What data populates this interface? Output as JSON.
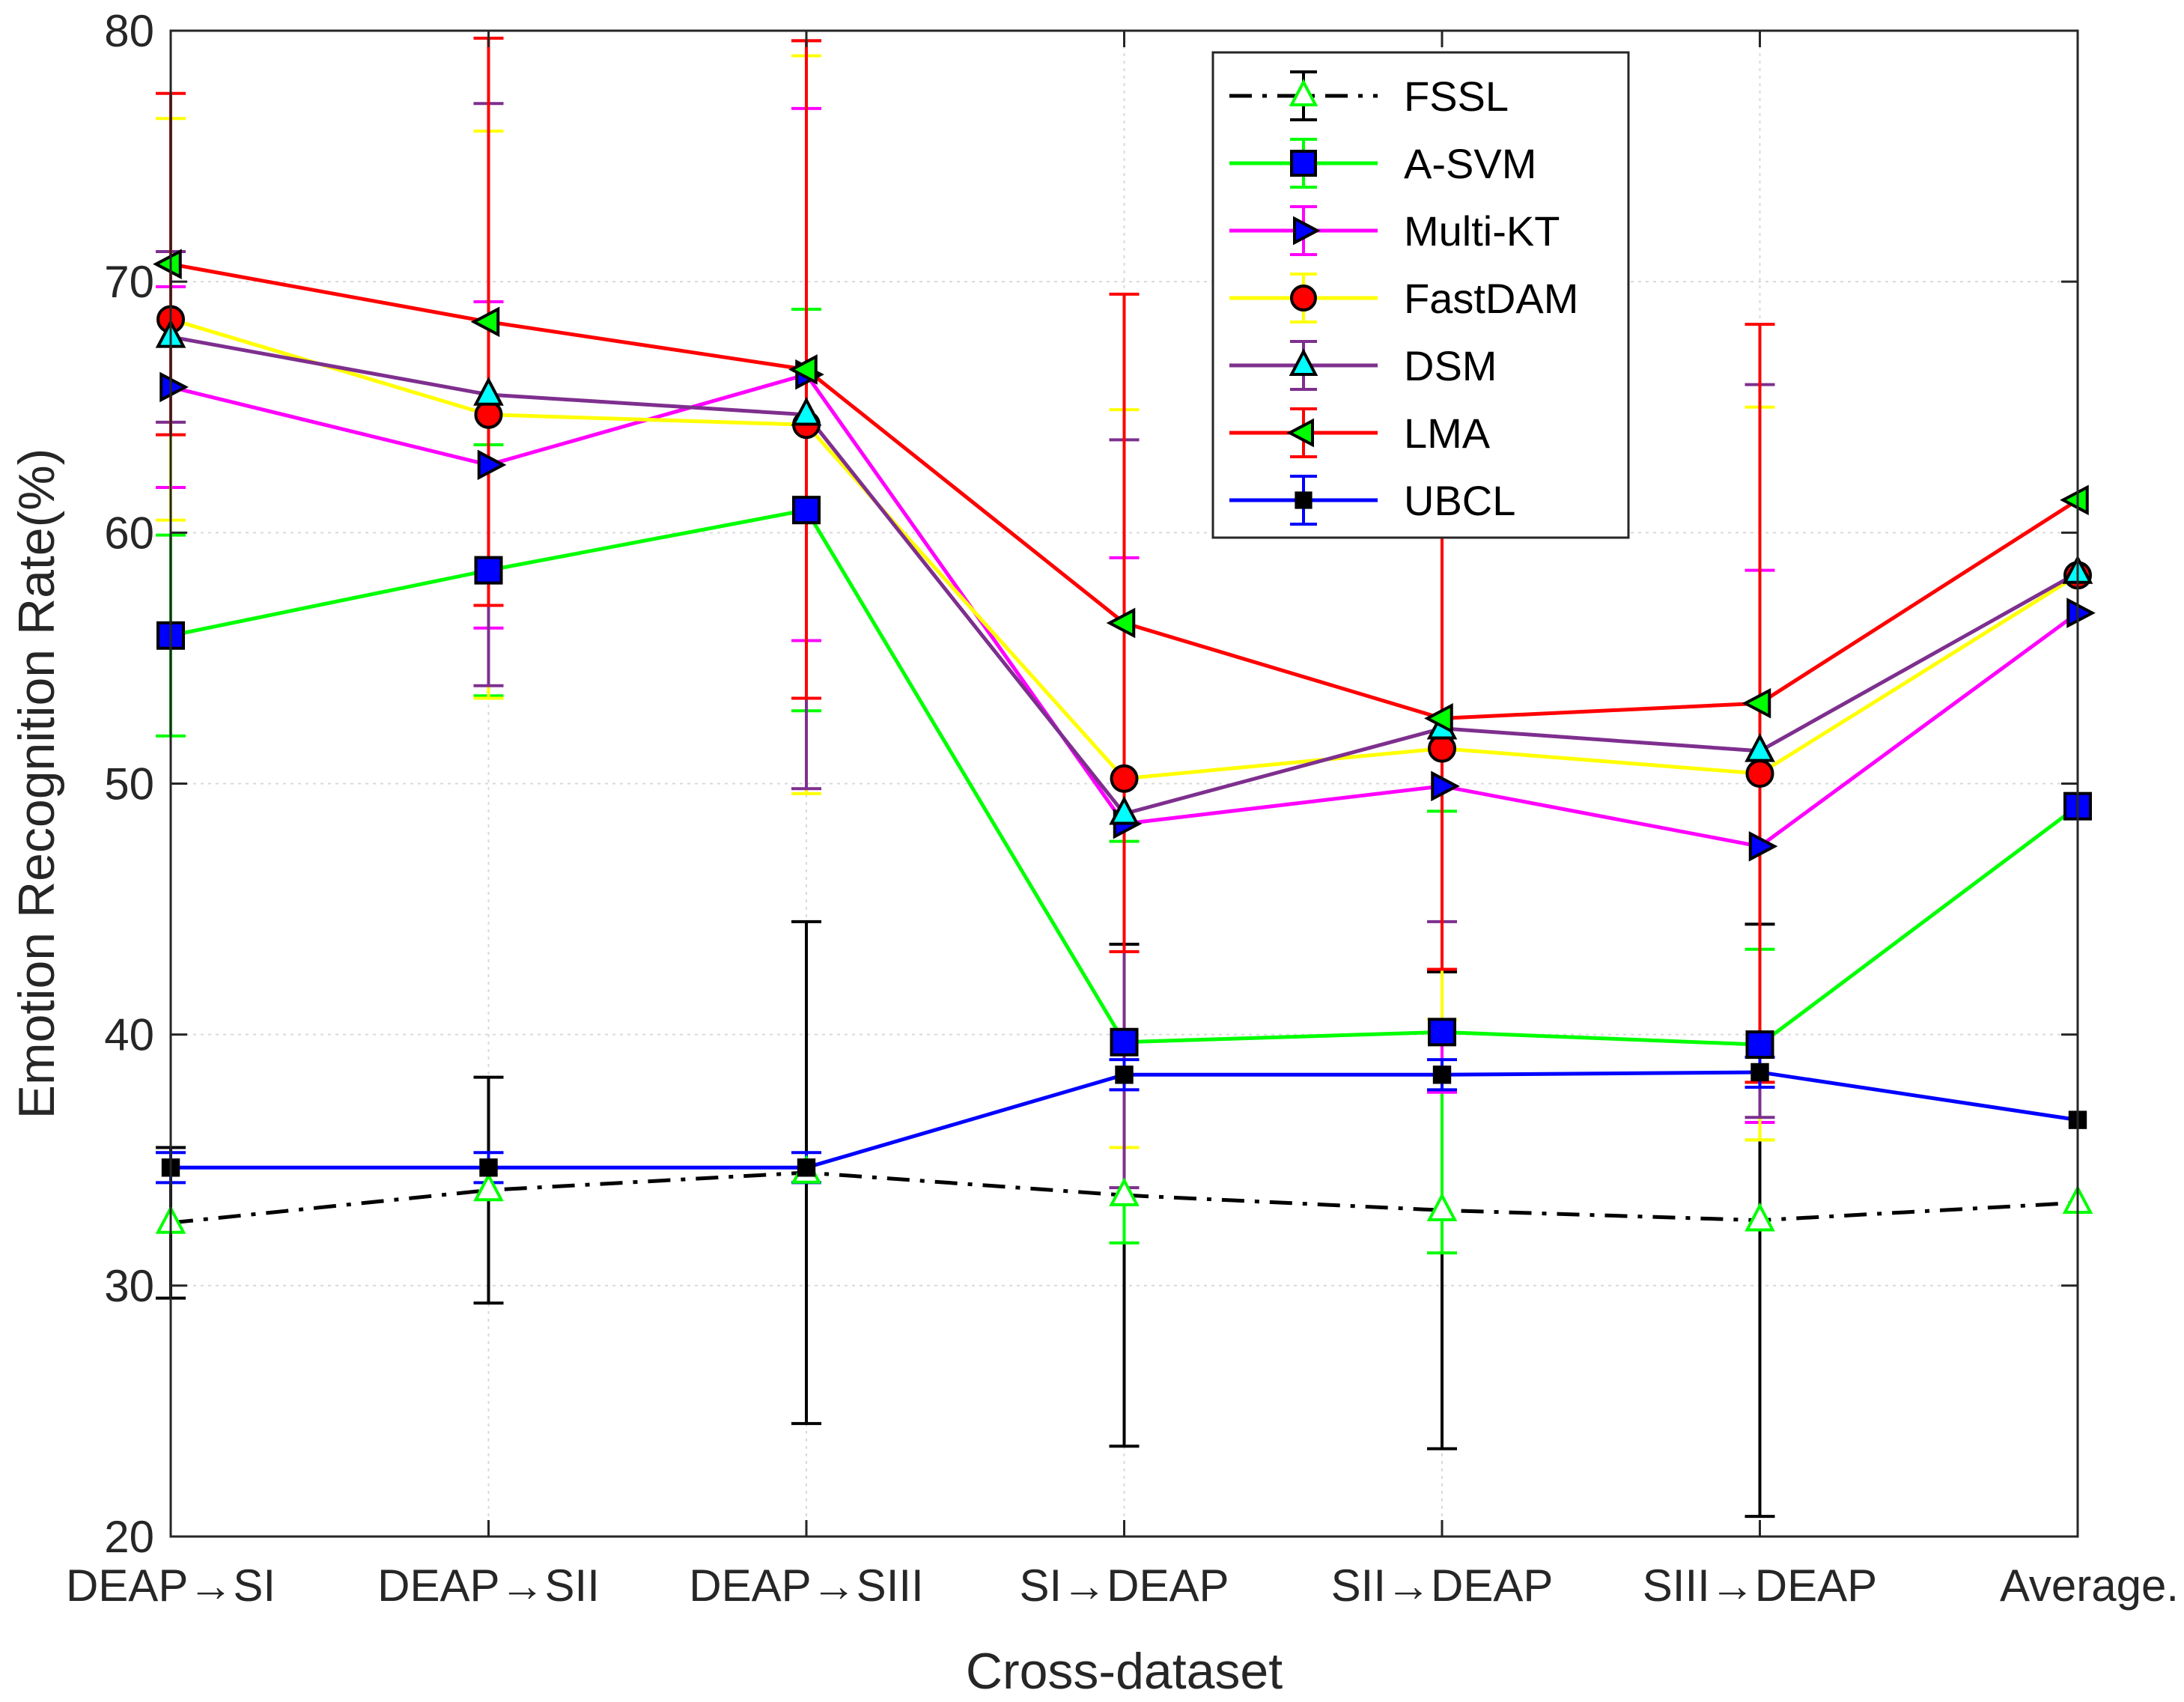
{
  "chart_data": {
    "type": "line",
    "title": "",
    "xlabel": "Cross-dataset",
    "ylabel": "Emotion Recognition Rate(%)",
    "ylim": [
      20,
      80
    ],
    "yticks": [
      20,
      30,
      40,
      50,
      60,
      70,
      80
    ],
    "grid": true,
    "legend_position": "top-right",
    "categories": [
      "DEAP→SI",
      "DEAP→SII",
      "DEAP→SIII",
      "SI→DEAP",
      "SII→DEAP",
      "SIII→DEAP",
      "Average."
    ],
    "series": [
      {
        "name": "FSSL",
        "line_color": "#000000",
        "marker": "triangle-up",
        "marker_face": "#ffffff",
        "marker_edge": "#00ff00",
        "line_style": "dashdot",
        "values": [
          32.5,
          33.8,
          34.5,
          33.6,
          33.0,
          32.6,
          33.3
        ],
        "errors": [
          3.0,
          4.5,
          10.0,
          10.0,
          9.5,
          11.8,
          null
        ]
      },
      {
        "name": "A-SVM",
        "line_color": "#00ff00",
        "marker": "square",
        "marker_face": "#0000ff",
        "marker_edge": "#000000",
        "line_style": "solid",
        "values": [
          55.9,
          58.5,
          60.9,
          39.7,
          40.1,
          39.6,
          49.1
        ],
        "errors": [
          4.0,
          5.0,
          8.0,
          8.0,
          8.8,
          3.8,
          null
        ]
      },
      {
        "name": "Multi-KT",
        "line_color": "#ff00ff",
        "marker": "triangle-right",
        "marker_face": "#0000ff",
        "marker_edge": "#000000",
        "line_style": "solid",
        "values": [
          65.8,
          62.7,
          66.3,
          48.4,
          49.9,
          47.5,
          56.8
        ],
        "errors": [
          4.0,
          6.5,
          10.6,
          10.6,
          12.2,
          11.0,
          null
        ]
      },
      {
        "name": "FastDAM",
        "line_color": "#ffff00",
        "marker": "circle",
        "marker_face": "#ff0000",
        "marker_edge": "#000000",
        "line_style": "solid",
        "values": [
          68.5,
          64.7,
          64.3,
          50.2,
          51.4,
          50.4,
          58.3
        ],
        "errors": [
          8.0,
          11.3,
          14.7,
          14.7,
          10.8,
          14.6,
          null
        ]
      },
      {
        "name": "DSM",
        "line_color": "#7e2f8e",
        "marker": "triangle-up",
        "marker_face": "#00ffff",
        "marker_edge": "#000000",
        "line_style": "solid",
        "values": [
          67.8,
          65.5,
          64.7,
          48.8,
          52.2,
          51.3,
          58.4
        ],
        "errors": [
          3.4,
          11.6,
          14.9,
          14.9,
          7.7,
          14.6,
          null
        ]
      },
      {
        "name": "LMA",
        "line_color": "#ff0000",
        "marker": "triangle-left",
        "marker_face": "#00ff00",
        "marker_edge": "#000000",
        "line_style": "solid",
        "values": [
          70.7,
          68.4,
          66.5,
          56.4,
          52.6,
          53.2,
          61.3
        ],
        "errors": [
          6.8,
          11.3,
          13.1,
          13.1,
          10.0,
          15.1,
          null
        ]
      },
      {
        "name": "UBCL",
        "line_color": "#0000ff",
        "marker": "square-small",
        "marker_face": "#000000",
        "marker_edge": "#000000",
        "line_style": "solid",
        "values": [
          34.7,
          34.7,
          34.7,
          38.4,
          38.4,
          38.5,
          36.6
        ],
        "errors": [
          0.6,
          0.6,
          0.6,
          0.6,
          0.6,
          0.6,
          null
        ]
      }
    ]
  }
}
